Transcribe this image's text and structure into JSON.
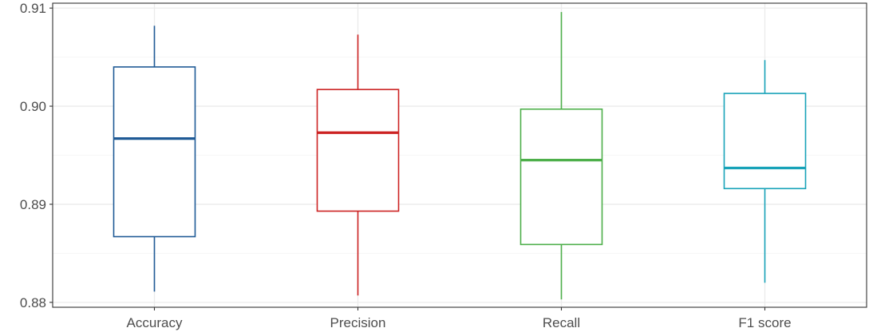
{
  "chart_data": {
    "type": "boxplot",
    "title": "",
    "xlabel": "",
    "ylabel": "",
    "ylim": [
      0.8795,
      0.9105
    ],
    "yticks": [
      0.88,
      0.89,
      0.9,
      0.91
    ],
    "ytick_labels": [
      "0.88",
      "0.89",
      "0.90",
      "0.91"
    ],
    "grid": true,
    "legend": "none",
    "categories": [
      "Accuracy",
      "Precision",
      "Recall",
      "F1 score"
    ],
    "series": [
      {
        "category": "Accuracy",
        "color": "#1f5a96",
        "whisker_low": 0.8811,
        "q1": 0.8867,
        "median": 0.8967,
        "q3": 0.904,
        "whisker_high": 0.9082
      },
      {
        "category": "Precision",
        "color": "#cc2222",
        "whisker_low": 0.8807,
        "q1": 0.8893,
        "median": 0.8973,
        "q3": 0.9017,
        "whisker_high": 0.9073
      },
      {
        "category": "Recall",
        "color": "#4daf4a",
        "whisker_low": 0.8803,
        "q1": 0.8859,
        "median": 0.8945,
        "q3": 0.8997,
        "whisker_high": 0.9096
      },
      {
        "category": "F1 score",
        "color": "#17a2b8",
        "whisker_low": 0.882,
        "q1": 0.8916,
        "median": 0.8937,
        "q3": 0.9013,
        "whisker_high": 0.9047
      }
    ]
  }
}
